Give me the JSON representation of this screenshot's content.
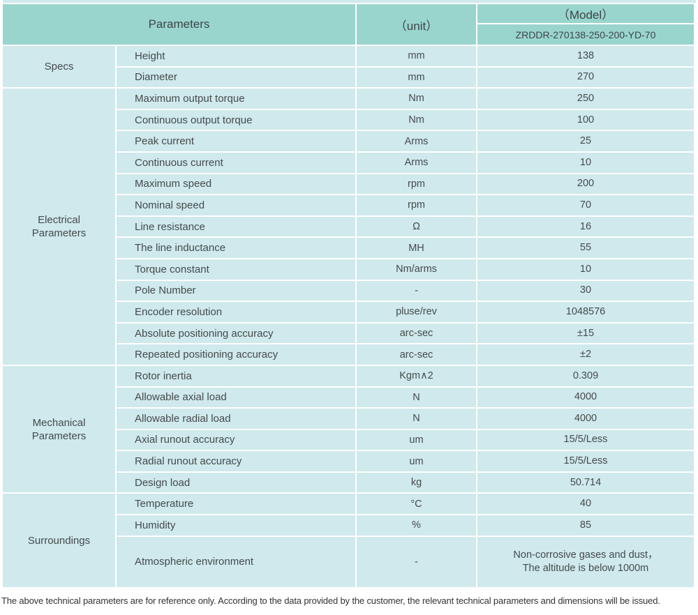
{
  "colors": {
    "header_bg": "#99d5cd",
    "cell_bg": "#cfe9ec",
    "text": "#454a4c",
    "page_bg": "#ffffff"
  },
  "header": {
    "parameters_label": "Parameters",
    "unit_label": "（unit）",
    "model_label": "（Model）",
    "model_number": "ZRDDR-270138-250-200-YD-70"
  },
  "groups": [
    {
      "label": "Specs",
      "rows": [
        {
          "name": "Height",
          "unit": "mm",
          "value": "138"
        },
        {
          "name": "Diameter",
          "unit": "mm",
          "value": "270"
        }
      ]
    },
    {
      "label": "Electrical Parameters",
      "rows": [
        {
          "name": "Maximum output torque",
          "unit": "Nm",
          "value": "250"
        },
        {
          "name": "Continuous output torque",
          "unit": "Nm",
          "value": "100"
        },
        {
          "name": "Peak current",
          "unit": "Arms",
          "value": "25"
        },
        {
          "name": "Continuous current",
          "unit": "Arms",
          "value": "10"
        },
        {
          "name": "Maximum speed",
          "unit": "rpm",
          "value": "200"
        },
        {
          "name": "Nominal speed",
          "unit": "rpm",
          "value": "70"
        },
        {
          "name": "Line resistance",
          "unit": "Ω",
          "value": "16"
        },
        {
          "name": "The line inductance",
          "unit": "MH",
          "value": "55"
        },
        {
          "name": "Torque constant",
          "unit": "Nm/arms",
          "value": "10"
        },
        {
          "name": "Pole Number",
          "unit": "-",
          "value": "30"
        },
        {
          "name": "Encoder resolution",
          "unit": "pluse/rev",
          "value": "1048576"
        },
        {
          "name": "Absolute positioning accuracy",
          "unit": "arc-sec",
          "value": "±15"
        },
        {
          "name": "Repeated positioning accuracy",
          "unit": "arc-sec",
          "value": "±2"
        }
      ]
    },
    {
      "label": "Mechanical Parameters",
      "rows": [
        {
          "name": "Rotor inertia",
          "unit": "Kgm∧2",
          "value": "0.309"
        },
        {
          "name": "Allowable axial load",
          "unit": "N",
          "value": "4000"
        },
        {
          "name": "Allowable radial load",
          "unit": "N",
          "value": "4000"
        },
        {
          "name": "Axial runout accuracy",
          "unit": "um",
          "value": "15/5/Less"
        },
        {
          "name": "Radial runout accuracy",
          "unit": "um",
          "value": "15/5/Less"
        },
        {
          "name": "Design load",
          "unit": "kg",
          "value": "50.714"
        }
      ]
    },
    {
      "label": "Surroundings",
      "rows": [
        {
          "name": "Temperature",
          "unit": "°C",
          "value": "40"
        },
        {
          "name": "Humidity",
          "unit": "%",
          "value": "85"
        },
        {
          "name": "Atmospheric environment",
          "unit": "-",
          "value": "Non-corrosive gases and dust，\nThe altitude is below 1000m"
        }
      ]
    }
  ],
  "footer_note": "The above technical parameters are for reference only. According to the data provided by the customer, the relevant technical parameters and dimensions will be issued."
}
